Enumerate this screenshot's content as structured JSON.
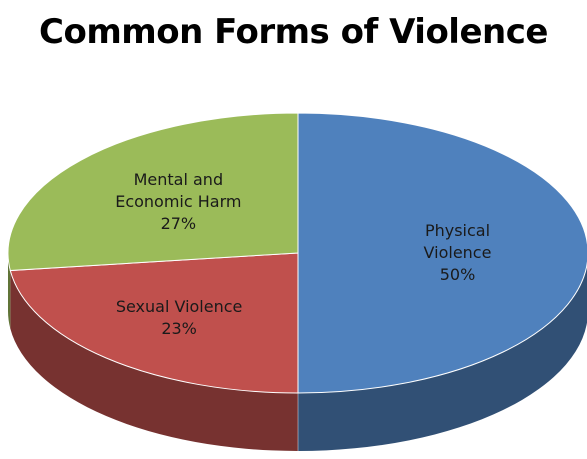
{
  "chart_data": {
    "type": "pie",
    "title": "Common Forms of Violence",
    "slices": [
      {
        "label_lines": [
          "Physical",
          "Violence"
        ],
        "value": 50,
        "value_label": "50%",
        "color": "#4f81bd"
      },
      {
        "label_lines": [
          "Sexual Violence"
        ],
        "value": 23,
        "value_label": "23%",
        "color": "#c0504d"
      },
      {
        "label_lines": [
          "Mental and",
          "Economic Harm"
        ],
        "value": 27,
        "value_label": "27%",
        "color": "#9bbb59"
      }
    ],
    "style": "3d",
    "legend": "none"
  }
}
